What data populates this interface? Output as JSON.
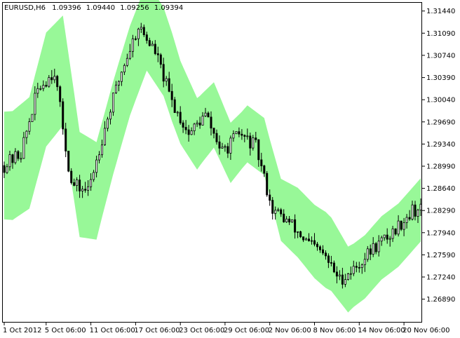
{
  "header": {
    "symbol": "EURUSD,H6",
    "open": "1.09396",
    "high": "1.09440",
    "low": "1.09256",
    "close": "1.09394"
  },
  "colors": {
    "background": "#ffffff",
    "frame": "#000000",
    "band_fill": "#98f898",
    "bull_candle": "#ffffff",
    "bear_candle": "#000000",
    "wick": "#000000",
    "last_price_marker": "#5a1a6a"
  },
  "chart_data": {
    "type": "candlestick",
    "y_range": [
      1.2652,
      1.3157
    ],
    "y_ticks": [
      "1.31440",
      "1.31090",
      "1.30740",
      "1.30390",
      "1.30040",
      "1.29690",
      "1.29340",
      "1.28990",
      "1.28640",
      "1.28290",
      "1.27940",
      "1.27590",
      "1.27240",
      "1.26890"
    ],
    "x_labels": [
      "1 Oct 2012",
      "5 Oct 06:00",
      "11 Oct 06:00",
      "17 Oct 06:00",
      "23 Oct 06:00",
      "29 Oct 06:00",
      "2 Nov 06:00",
      "8 Nov 06:00",
      "14 Nov 06:00",
      "20 Nov 06:00"
    ],
    "x_label_bar_index": [
      0,
      15,
      31,
      47,
      63,
      79,
      95,
      111,
      127,
      143
    ],
    "bar_count": 150,
    "close_path_points": [
      [
        0,
        1.29
      ],
      [
        6,
        1.292
      ],
      [
        12,
        1.302
      ],
      [
        18,
        1.305
      ],
      [
        24,
        1.287
      ],
      [
        30,
        1.286
      ],
      [
        36,
        1.296
      ],
      [
        42,
        1.305
      ],
      [
        48,
        1.312
      ],
      [
        54,
        1.308
      ],
      [
        60,
        1.3
      ],
      [
        66,
        1.295
      ],
      [
        72,
        1.298
      ],
      [
        78,
        1.292
      ],
      [
        84,
        1.295
      ],
      [
        90,
        1.293
      ],
      [
        96,
        1.283
      ],
      [
        102,
        1.281
      ],
      [
        108,
        1.278
      ],
      [
        114,
        1.276
      ],
      [
        120,
        1.272
      ],
      [
        126,
        1.274
      ],
      [
        132,
        1.277
      ],
      [
        138,
        1.279
      ],
      [
        146,
        1.283
      ]
    ],
    "band_width_points": [
      [
        0,
        0.0085
      ],
      [
        15,
        0.009
      ],
      [
        25,
        0.0085
      ],
      [
        35,
        0.0075
      ],
      [
        47,
        0.007
      ],
      [
        60,
        0.007
      ],
      [
        70,
        0.0055
      ],
      [
        85,
        0.0045
      ],
      [
        95,
        0.0045
      ],
      [
        105,
        0.0055
      ],
      [
        115,
        0.006
      ],
      [
        125,
        0.005
      ],
      [
        135,
        0.005
      ],
      [
        149,
        0.005
      ]
    ]
  }
}
